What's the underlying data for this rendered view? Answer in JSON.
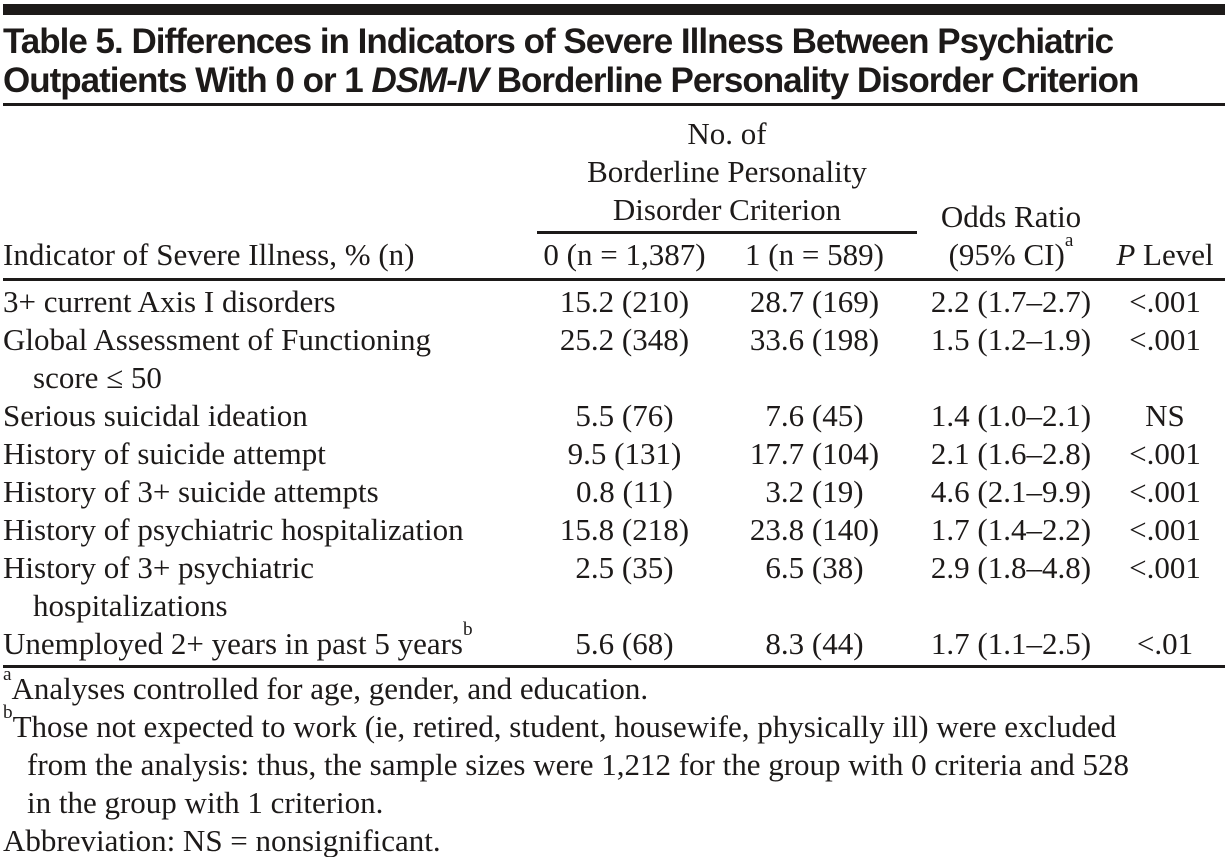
{
  "colors": {
    "ink": "#1d1a19",
    "background": "#ffffff"
  },
  "title": {
    "line1": "Table 5. Differences in Indicators of Severe Illness Between Psychiatric",
    "line2_pre": "Outpatients With 0 or 1 ",
    "line2_italic": "DSM-IV",
    "line2_post": " Borderline Personality Disorder Criterion"
  },
  "header": {
    "indicator_col": "Indicator of Severe Illness, % (n)",
    "spanner": "No. of\nBorderline Personality\nDisorder Criterion",
    "subcol_0": "0 (n = 1,387)",
    "subcol_1": "1 (n = 589)",
    "odds_ratio_line1": "Odds Ratio",
    "odds_ratio_line2": "(95% CI)",
    "odds_ratio_sup": "a",
    "p_level_italic": "P",
    "p_level_rest": "Level"
  },
  "table": {
    "rows": [
      {
        "label": "3+ current Axis I disorders",
        "v0": "15.2 (210)",
        "v1": "28.7 (169)",
        "or": "2.2 (1.7–2.7)",
        "p": "<.001"
      },
      {
        "label": "Global Assessment of Functioning",
        "label2": "score ≤ 50",
        "v0": "25.2 (348)",
        "v1": "33.6 (198)",
        "or": "1.5 (1.2–1.9)",
        "p": "<.001"
      },
      {
        "label": "Serious suicidal ideation",
        "v0": "5.5 (76)",
        "v1": "7.6 (45)",
        "or": "1.4 (1.0–2.1)",
        "p": "NS"
      },
      {
        "label": "History of suicide attempt",
        "v0": "9.5 (131)",
        "v1": "17.7 (104)",
        "or": "2.1 (1.6–2.8)",
        "p": "<.001"
      },
      {
        "label": "History of 3+ suicide attempts",
        "v0": "0.8 (11)",
        "v1": "3.2 (19)",
        "or": "4.6 (2.1–9.9)",
        "p": "<.001"
      },
      {
        "label": "History of psychiatric hospitalization",
        "v0": "15.8 (218)",
        "v1": "23.8 (140)",
        "or": "1.7 (1.4–2.2)",
        "p": "<.001"
      },
      {
        "label": "History of 3+ psychiatric",
        "label2": "hospitalizations",
        "v0": "2.5 (35)",
        "v1": "6.5 (38)",
        "or": "2.9 (1.8–4.8)",
        "p": "<.001"
      },
      {
        "label": "Unemployed 2+ years in past 5 years",
        "label_sup": "b",
        "v0": "5.6 (68)",
        "v1": "8.3 (44)",
        "or": "1.7 (1.1–2.5)",
        "p": "<.01"
      }
    ]
  },
  "footnotes": {
    "a_sup": "a",
    "a_text": "Analyses controlled for age, gender, and education.",
    "b_sup": "b",
    "b_line1": "Those not expected to work (ie, retired, student, housewife, physically ill) were excluded",
    "b_line2": "from the analysis: thus, the sample sizes were 1,212 for the group with 0 criteria and 528",
    "b_line3": "in the group with 1 criterion.",
    "abbreviation": "Abbreviation: NS = nonsignificant."
  }
}
